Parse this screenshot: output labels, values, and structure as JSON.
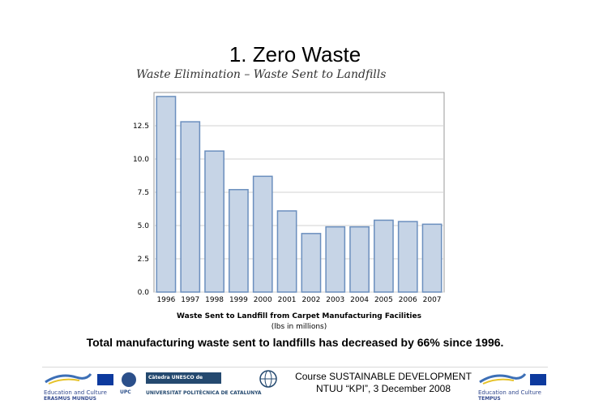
{
  "slide": {
    "title": "1. Zero Waste",
    "caption": "Total manufacturing waste sent to landfills has decreased by 66% since 1996."
  },
  "chart_data": {
    "type": "bar",
    "title": "Waste Elimination – Waste Sent to Landfills",
    "xlabel": "Waste Sent to Landfill from Carpet Manufacturing Facilities",
    "xlabel_sub": "(lbs in millions)",
    "ylabel": "",
    "categories": [
      "1996",
      "1997",
      "1998",
      "1999",
      "2000",
      "2001",
      "2002",
      "2003",
      "2004",
      "2005",
      "2006",
      "2007"
    ],
    "values": [
      14.7,
      12.8,
      10.6,
      7.7,
      8.7,
      6.1,
      4.4,
      4.9,
      4.9,
      5.4,
      5.3,
      5.1
    ],
    "yticks": [
      "0.0",
      "2.5",
      "5.0",
      "7.5",
      "10.0",
      "12.5"
    ],
    "ylim": [
      0,
      15
    ],
    "grid": true,
    "colors": {
      "bar_fill": "#c6d4e6",
      "bar_stroke": "#6b8fbe",
      "grid": "#d0d0d0"
    }
  },
  "footer": {
    "ec_left": "Education and Culture",
    "ec_left_sub": "ERASMUS MUNDUS",
    "unesco": "Càtedra UNESCO de Sostenibilitat",
    "upc_name": "UNIVERSITAT POLITÈCNICA DE CATALUNYA",
    "upc_badge": "UPC",
    "course_line1": "Course SUSTAINABLE DEVELOPMENT",
    "course_line2": "NTUU “KPI”, 3 December 2008",
    "ec_right": "Education and Culture",
    "ec_right_sub": "TEMPUS"
  }
}
